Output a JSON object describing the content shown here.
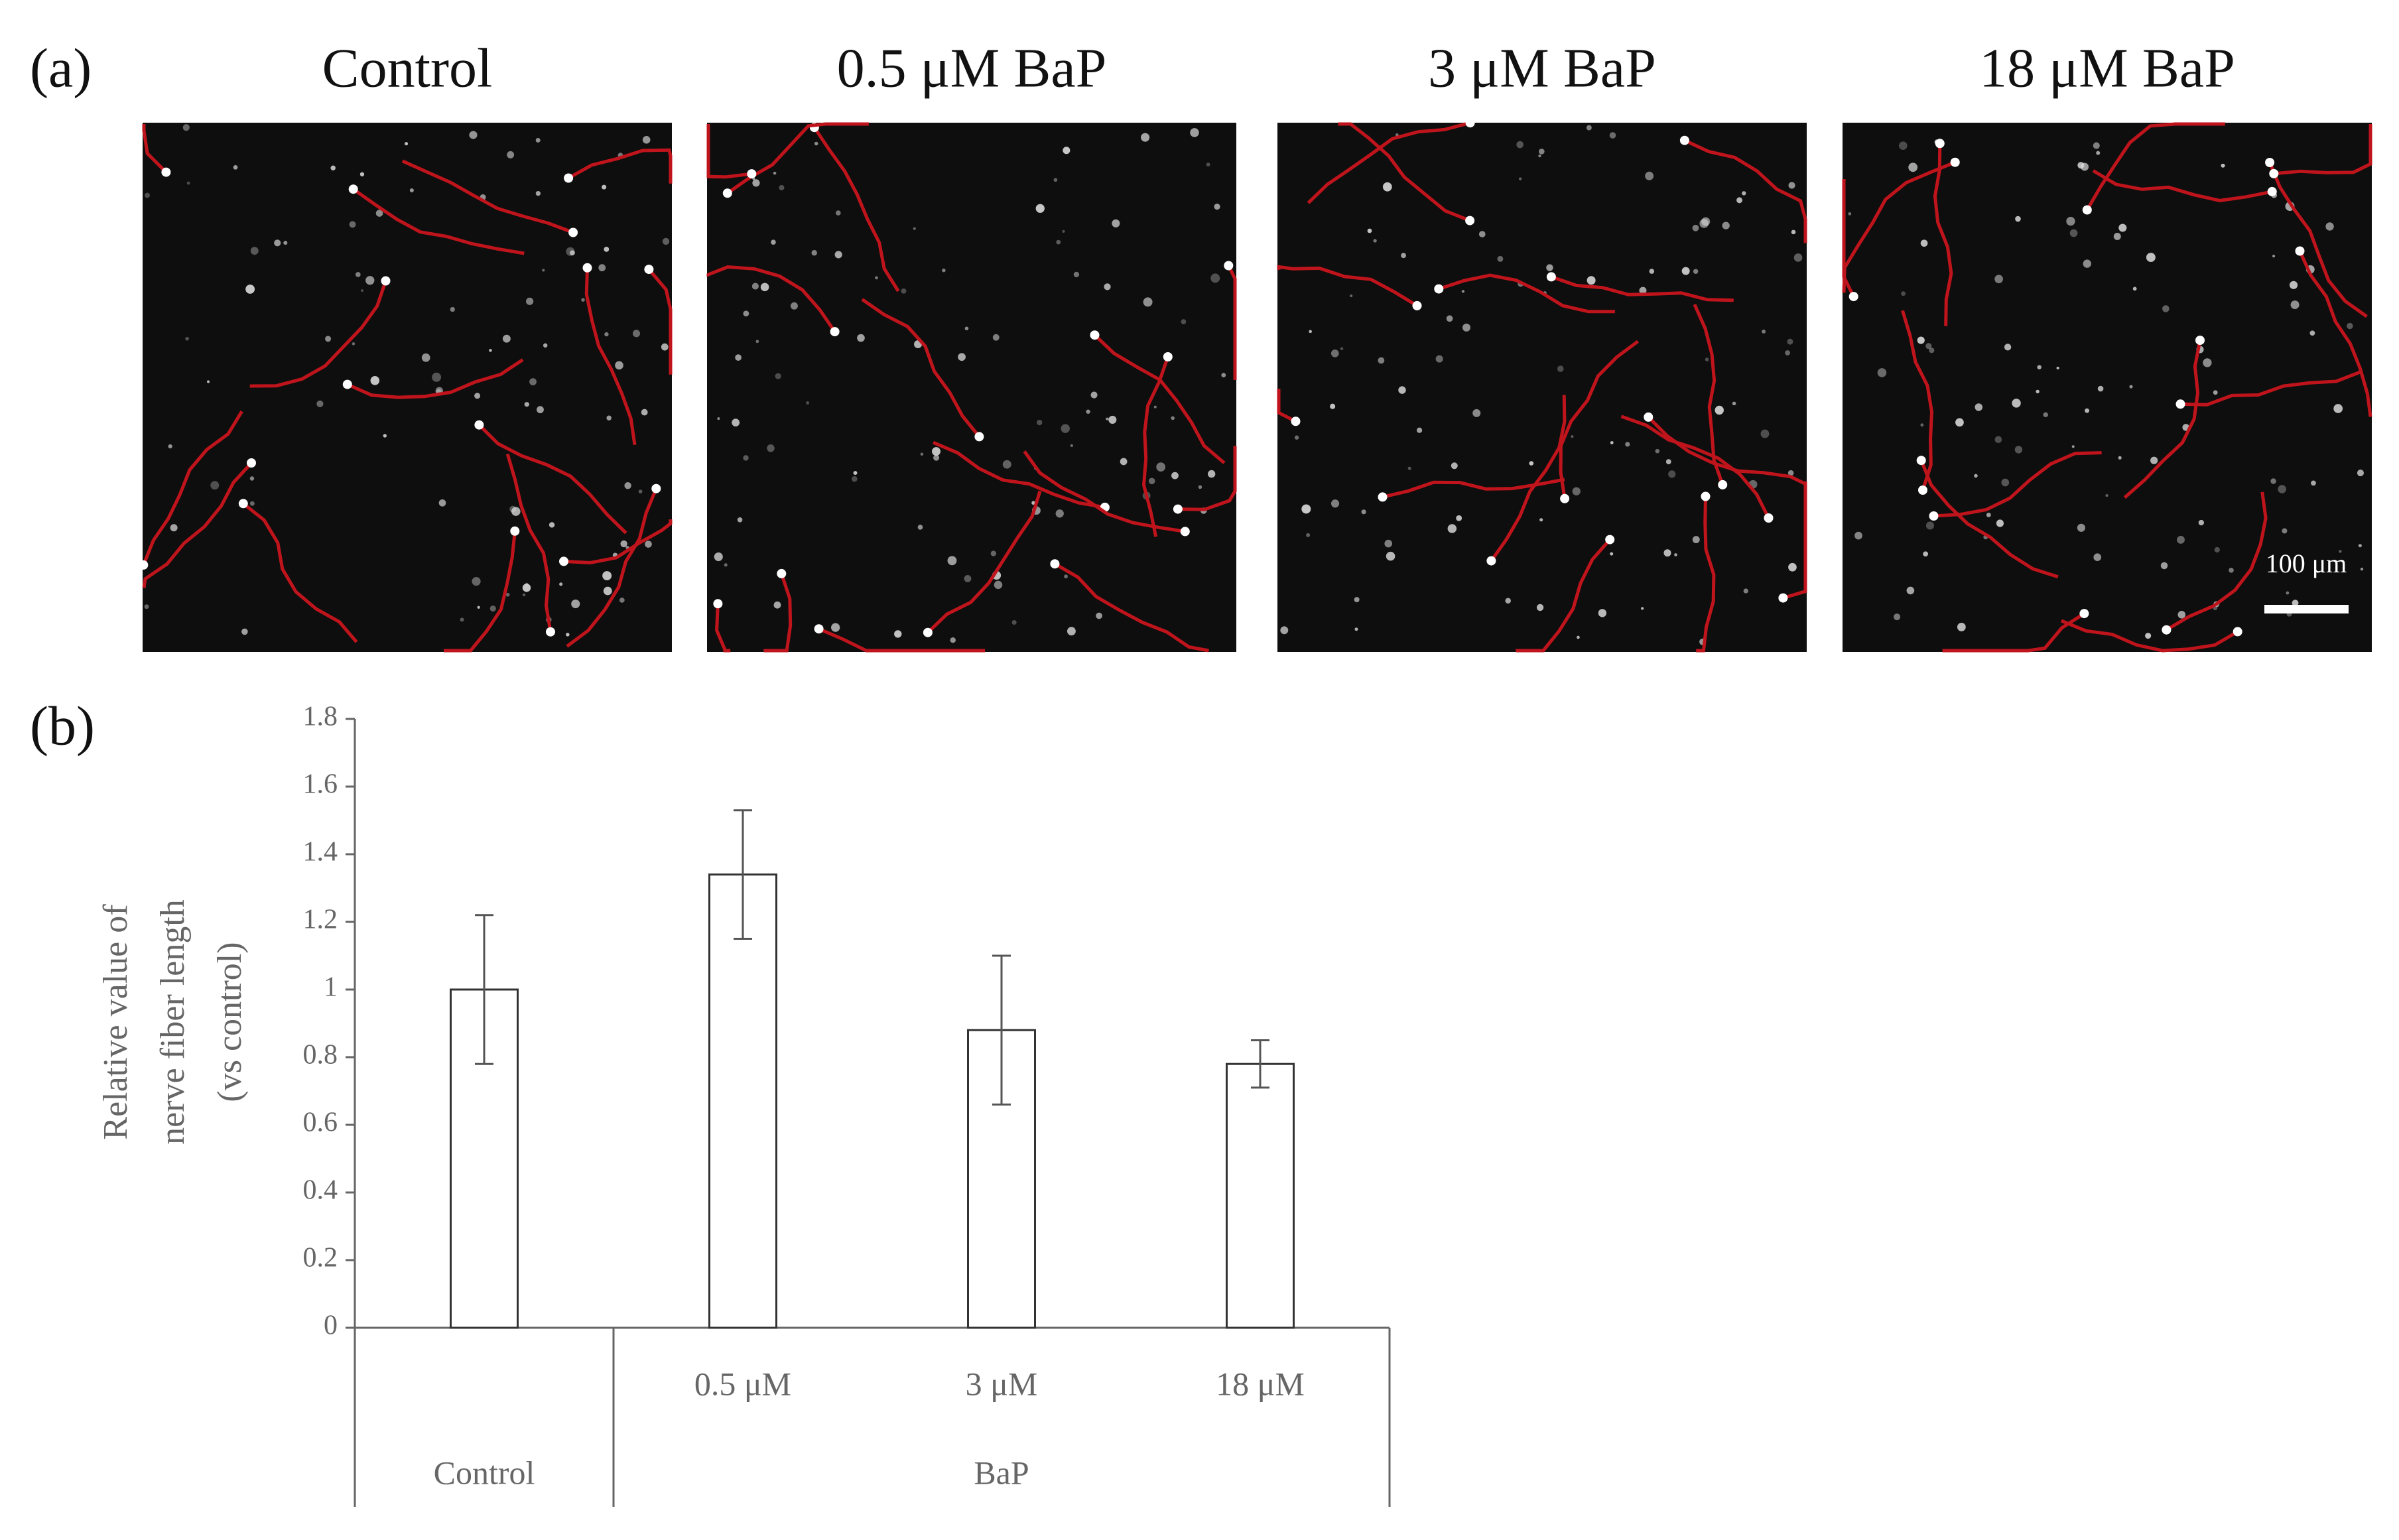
{
  "panel_a": {
    "label": "(a)",
    "image_titles": [
      "Control",
      "0.5 μM BaP",
      "3 μM BaP",
      "18 μM BaP"
    ],
    "scale_bar": "100 μm"
  },
  "chart_data": {
    "type": "bar",
    "panel_label": "(b)",
    "y_label": [
      "Relative value of",
      "nerve fiber length",
      "(vs control)"
    ],
    "categories": [
      null,
      "0.5 μM",
      "3 μM",
      "18 μM"
    ],
    "groups": [
      {
        "label": "Control",
        "size": 1
      },
      {
        "label": "BaP",
        "size": 3
      }
    ],
    "values": [
      1.0,
      1.34,
      0.88,
      0.78
    ],
    "errors": [
      0.22,
      0.19,
      0.22,
      0.07
    ],
    "color": "#ffffff",
    "ylim": [
      0,
      1.8
    ],
    "yticks": [
      0,
      0.2,
      0.4,
      0.6,
      0.8,
      1,
      1.2,
      1.4,
      1.6,
      1.8
    ]
  }
}
